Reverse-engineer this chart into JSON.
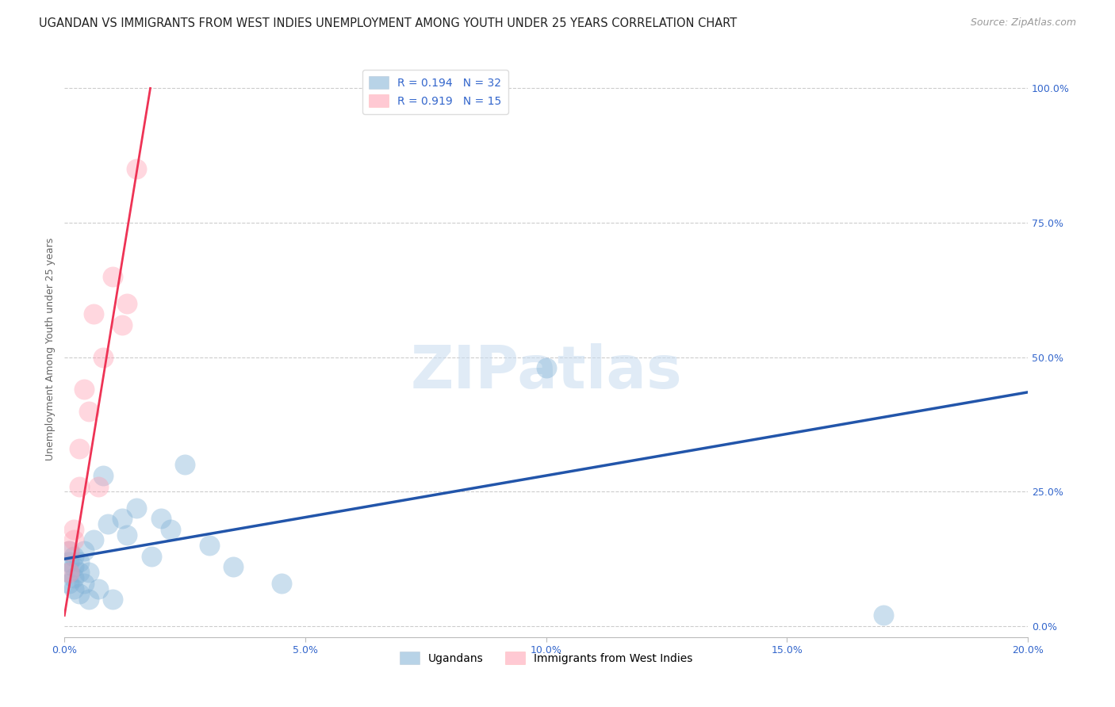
{
  "title": "UGANDAN VS IMMIGRANTS FROM WEST INDIES UNEMPLOYMENT AMONG YOUTH UNDER 25 YEARS CORRELATION CHART",
  "source": "Source: ZipAtlas.com",
  "ylabel": "Unemployment Among Youth under 25 years",
  "xlim": [
    0.0,
    0.2
  ],
  "ylim": [
    -0.02,
    1.05
  ],
  "xticks": [
    0.0,
    0.05,
    0.1,
    0.15,
    0.2
  ],
  "xtick_labels": [
    "0.0%",
    "5.0%",
    "10.0%",
    "15.0%",
    "20.0%"
  ],
  "yticks_right": [
    0.0,
    0.25,
    0.5,
    0.75,
    1.0
  ],
  "ytick_labels_right": [
    "0.0%",
    "25.0%",
    "50.0%",
    "75.0%",
    "100.0%"
  ],
  "legend_label1": "Ugandans",
  "legend_label2": "Immigrants from West Indies",
  "watermark": "ZIPatlas",
  "blue_color": "#7EB0D5",
  "pink_color": "#FF9DB0",
  "blue_line_color": "#2255AA",
  "pink_line_color": "#EE3355",
  "ugandan_x": [
    0.001,
    0.001,
    0.001,
    0.001,
    0.002,
    0.002,
    0.002,
    0.002,
    0.003,
    0.003,
    0.003,
    0.004,
    0.004,
    0.005,
    0.005,
    0.006,
    0.007,
    0.008,
    0.009,
    0.01,
    0.012,
    0.013,
    0.015,
    0.018,
    0.02,
    0.022,
    0.025,
    0.03,
    0.035,
    0.045,
    0.1,
    0.17
  ],
  "ugandan_y": [
    0.14,
    0.12,
    0.1,
    0.08,
    0.13,
    0.11,
    0.09,
    0.07,
    0.12,
    0.1,
    0.06,
    0.14,
    0.08,
    0.05,
    0.1,
    0.16,
    0.07,
    0.28,
    0.19,
    0.05,
    0.2,
    0.17,
    0.22,
    0.13,
    0.2,
    0.18,
    0.3,
    0.15,
    0.11,
    0.08,
    0.48,
    0.02
  ],
  "westindies_x": [
    0.001,
    0.001,
    0.002,
    0.002,
    0.003,
    0.003,
    0.004,
    0.005,
    0.006,
    0.007,
    0.008,
    0.01,
    0.012,
    0.013,
    0.015
  ],
  "westindies_y": [
    0.14,
    0.1,
    0.16,
    0.18,
    0.26,
    0.33,
    0.44,
    0.4,
    0.58,
    0.26,
    0.5,
    0.65,
    0.56,
    0.6,
    0.85
  ],
  "title_fontsize": 10.5,
  "axis_label_fontsize": 9,
  "tick_fontsize": 9,
  "legend_fontsize": 10,
  "source_fontsize": 9,
  "blue_trend_intercept": 0.125,
  "blue_trend_slope": 1.55,
  "pink_trend_intercept": 0.02,
  "pink_trend_slope": 55.0
}
